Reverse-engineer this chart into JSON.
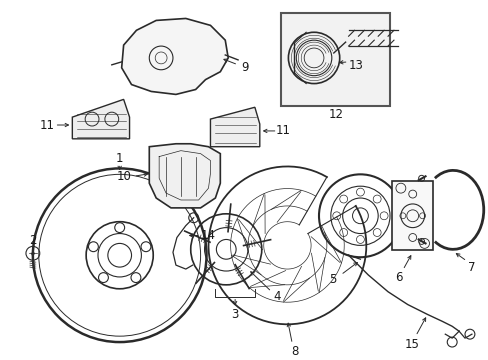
{
  "background_color": "#ffffff",
  "fig_width": 4.89,
  "fig_height": 3.6,
  "dpi": 100,
  "font_color": "#1a1a1a",
  "line_color": "#2a2a2a",
  "label_fontsize": 8.5
}
